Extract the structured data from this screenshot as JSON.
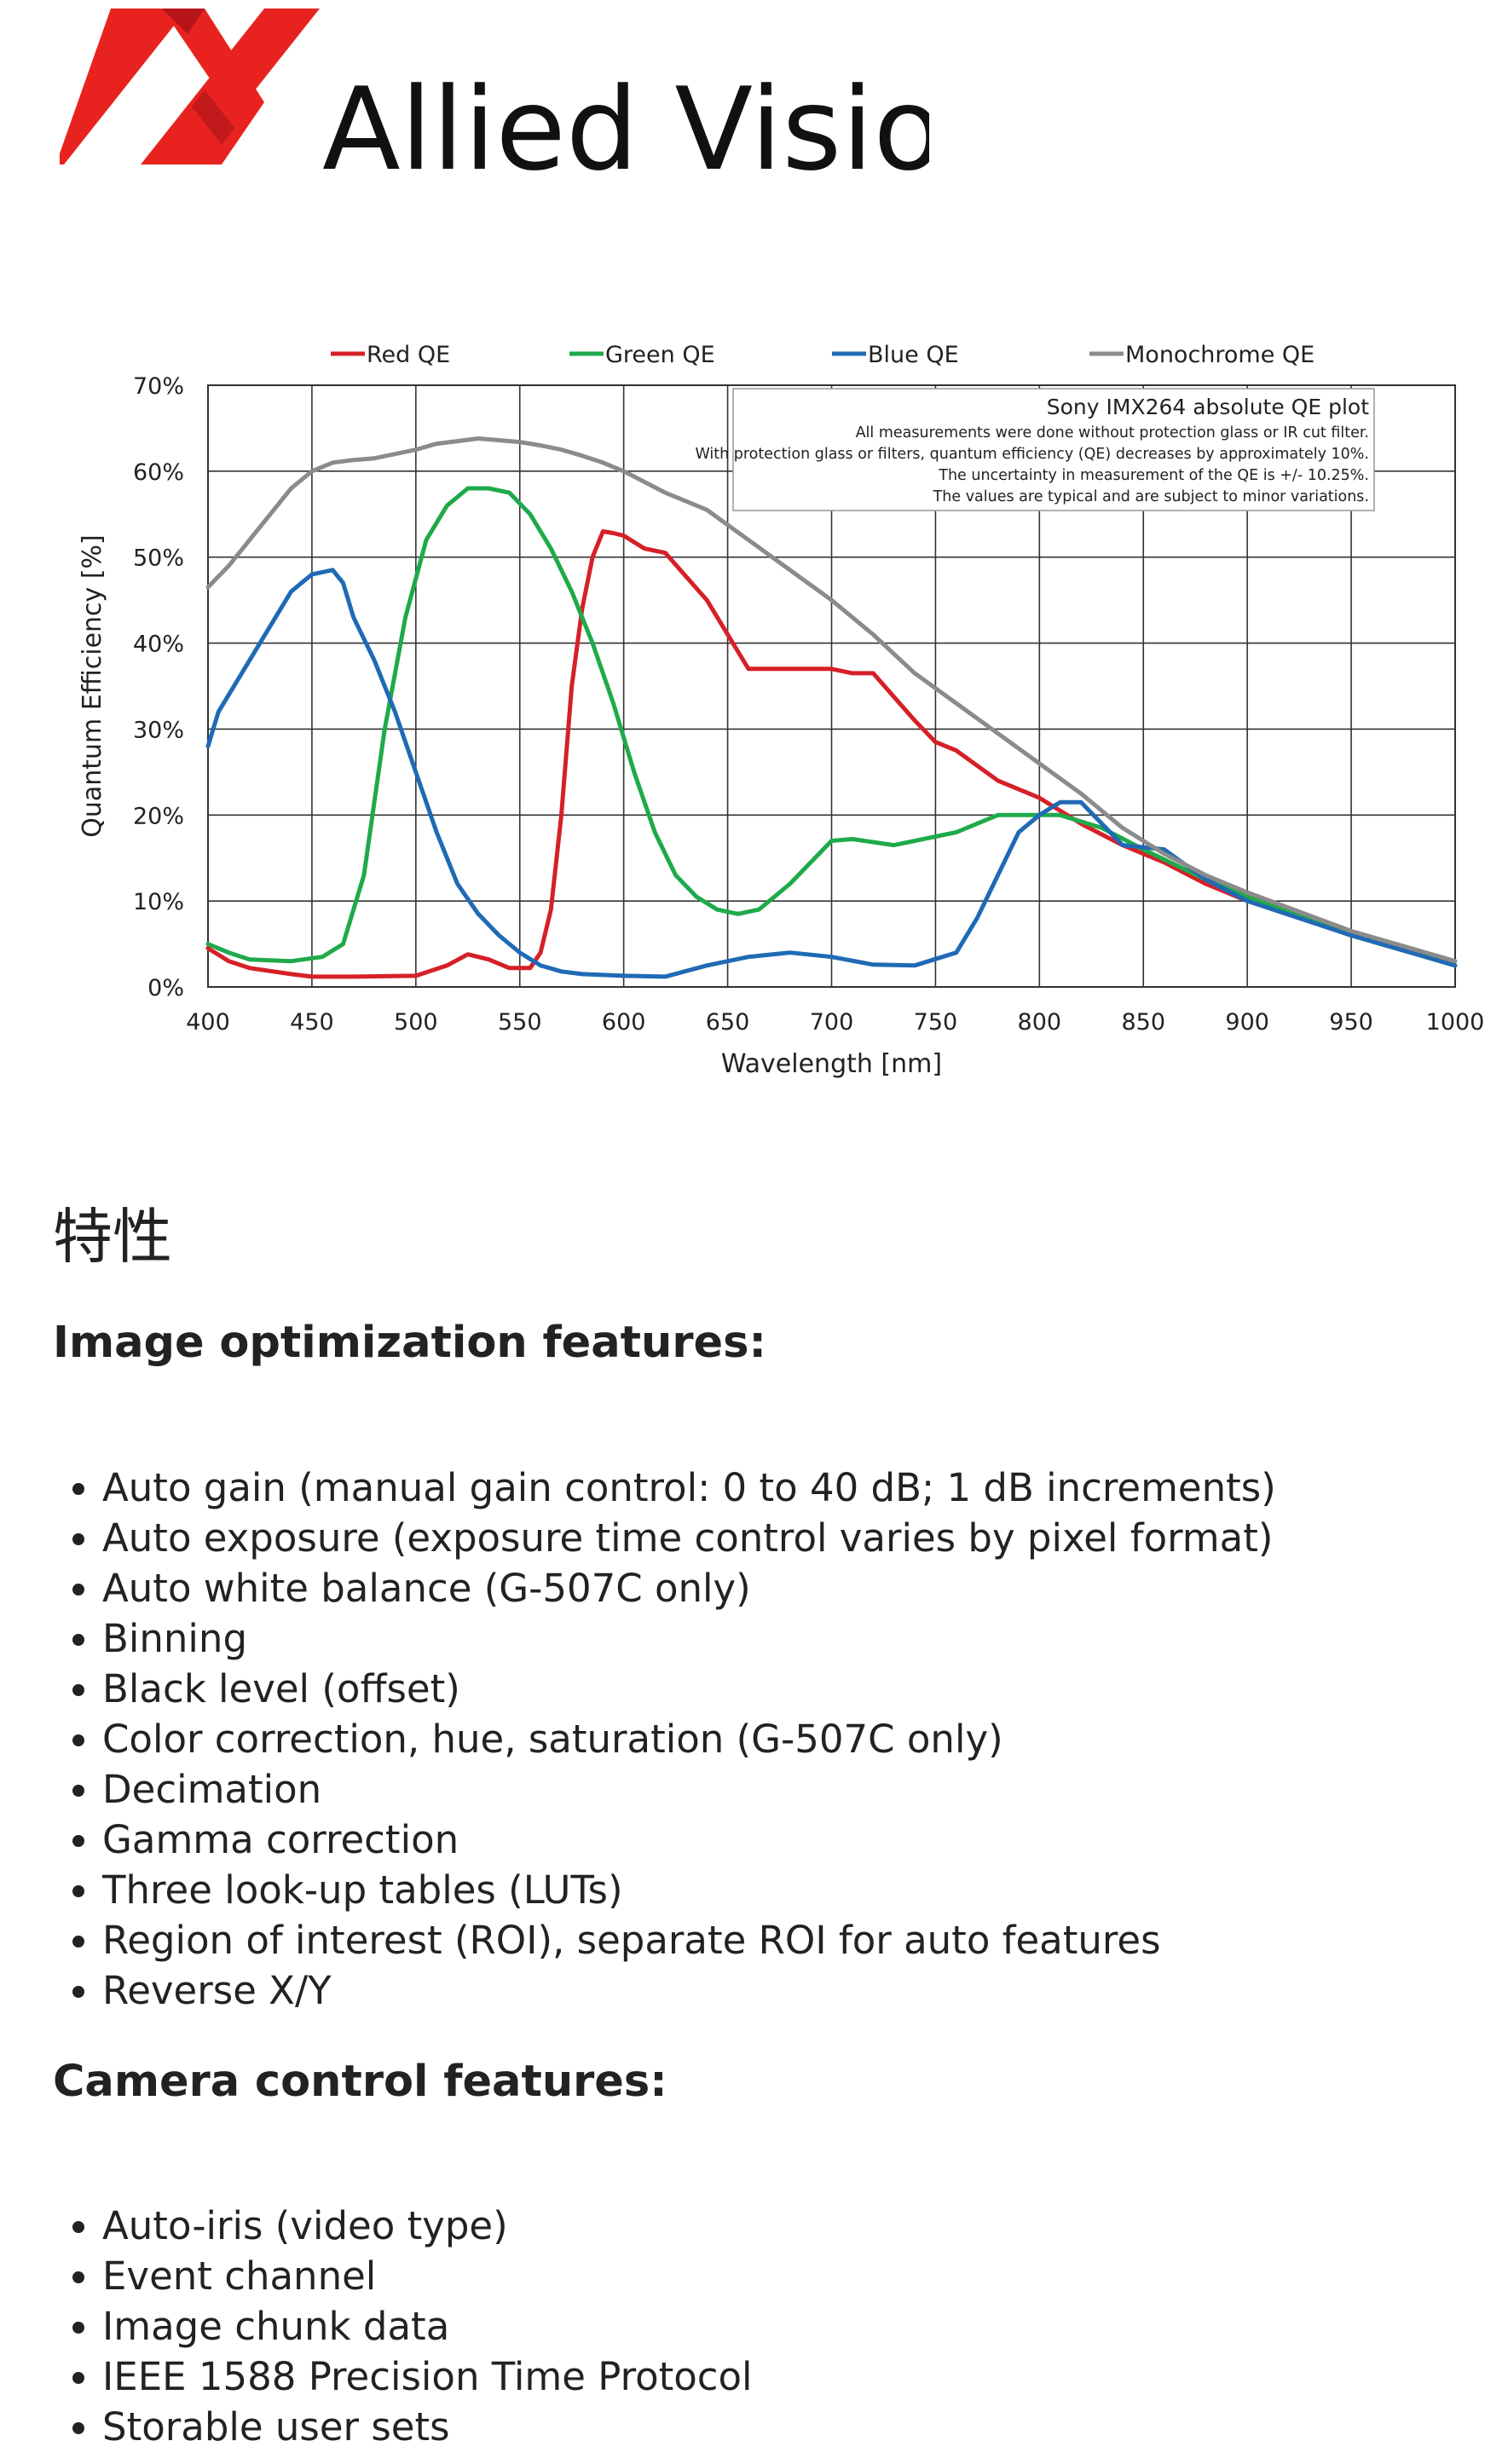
{
  "logo": {
    "brand": "Allied Vision",
    "mark": "allied-vision-logo-mark"
  },
  "chart_data": {
    "type": "line",
    "note_title": "Sony IMX264 absolute QE plot",
    "notes": [
      "All measurements were done without protection glass or IR cut filter.",
      "With protection glass or filters, quantum efficiency (QE) decreases by approximately 10%.",
      "The uncertainty in measurement of the QE is +/- 10.25%.",
      "The values are typical and are subject to minor variations."
    ],
    "xlabel": "Wavelength [nm]",
    "ylabel": "Quantum Efficiency [%]",
    "xlim": [
      400,
      1000
    ],
    "ylim": [
      0,
      70
    ],
    "xticks": [
      400,
      450,
      500,
      550,
      600,
      650,
      700,
      750,
      800,
      850,
      900,
      950,
      1000
    ],
    "yticks": [
      "0%",
      "10%",
      "20%",
      "30%",
      "40%",
      "50%",
      "60%",
      "70%"
    ],
    "grid": true,
    "legend_position": "top",
    "series": [
      {
        "name": "Red QE",
        "color": "#d62027",
        "x": [
          400,
          410,
          420,
          440,
          450,
          470,
          500,
          515,
          525,
          535,
          545,
          555,
          560,
          565,
          570,
          575,
          580,
          585,
          590,
          595,
          600,
          610,
          620,
          640,
          660,
          680,
          700,
          710,
          720,
          740,
          750,
          760,
          780,
          800,
          820,
          840,
          860,
          880,
          900,
          920,
          950,
          980,
          1000
        ],
        "y": [
          4.5,
          3,
          2.2,
          1.5,
          1.2,
          1.2,
          1.3,
          2.5,
          3.8,
          3.2,
          2.2,
          2.2,
          4,
          9,
          20,
          35,
          44,
          50,
          53,
          52.8,
          52.5,
          51,
          50.5,
          45,
          37,
          37,
          37,
          36.5,
          36.5,
          31,
          28.5,
          27.5,
          24,
          22,
          19,
          16.5,
          14.5,
          12,
          10,
          8.5,
          6,
          4,
          2.5
        ]
      },
      {
        "name": "Green QE",
        "color": "#1faa4a",
        "x": [
          400,
          410,
          420,
          440,
          455,
          465,
          475,
          485,
          495,
          505,
          515,
          525,
          535,
          545,
          555,
          565,
          575,
          585,
          595,
          605,
          615,
          625,
          635,
          645,
          655,
          665,
          680,
          700,
          710,
          730,
          760,
          780,
          810,
          830,
          850,
          880,
          900,
          950,
          1000
        ],
        "y": [
          5,
          4,
          3.2,
          3,
          3.5,
          5,
          13,
          30,
          43,
          52,
          56,
          58,
          58,
          57.5,
          55,
          51,
          46,
          40,
          33,
          25,
          18,
          13,
          10.5,
          9,
          8.5,
          9,
          12,
          17,
          17.2,
          16.5,
          18,
          20,
          20,
          18.5,
          16,
          12.5,
          10.5,
          6,
          2.5
        ]
      },
      {
        "name": "Blue QE",
        "color": "#1f6ab5",
        "x": [
          400,
          405,
          410,
          420,
          430,
          440,
          450,
          460,
          465,
          470,
          480,
          490,
          500,
          510,
          520,
          530,
          540,
          550,
          560,
          570,
          580,
          600,
          620,
          640,
          660,
          680,
          700,
          720,
          740,
          760,
          770,
          780,
          790,
          800,
          810,
          820,
          830,
          840,
          860,
          880,
          900,
          950,
          1000
        ],
        "y": [
          28,
          32,
          34,
          38,
          42,
          46,
          48,
          48.5,
          47,
          43,
          38,
          32,
          25,
          18,
          12,
          8.5,
          6,
          4,
          2.5,
          1.8,
          1.5,
          1.3,
          1.2,
          2.5,
          3.5,
          4,
          3.5,
          2.6,
          2.5,
          4,
          8,
          13,
          18,
          20,
          21.5,
          21.5,
          19,
          16.5,
          16,
          12.5,
          10,
          6,
          2.5
        ]
      },
      {
        "name": "Monochrome QE",
        "color": "#8b8b8b",
        "x": [
          400,
          410,
          420,
          430,
          440,
          450,
          460,
          470,
          480,
          490,
          500,
          510,
          520,
          530,
          540,
          550,
          560,
          570,
          580,
          590,
          600,
          620,
          640,
          660,
          680,
          700,
          720,
          740,
          760,
          780,
          800,
          820,
          840,
          860,
          880,
          900,
          950,
          1000
        ],
        "y": [
          46.5,
          49,
          52,
          55,
          58,
          60,
          61,
          61.3,
          61.5,
          62,
          62.5,
          63.2,
          63.5,
          63.8,
          63.6,
          63.4,
          63,
          62.5,
          61.8,
          61,
          60,
          57.5,
          55.5,
          52,
          48.5,
          45,
          41,
          36.5,
          33,
          29.5,
          26,
          22.5,
          18.5,
          15.5,
          13,
          11,
          6.5,
          3
        ]
      }
    ]
  },
  "features": {
    "heading": "特性",
    "image_optimization_title": "Image optimization features:",
    "image_optimization": [
      "Auto gain (manual gain control: 0 to 40 dB; 1 dB increments)",
      "Auto exposure (exposure time control varies by pixel format)",
      "Auto white balance (G-507C only)",
      "Binning",
      "Black level (offset)",
      "Color correction, hue, saturation (G-507C only)",
      "Decimation",
      "Gamma correction",
      "Three look-up tables (LUTs)",
      "Region of interest (ROI), separate ROI for auto features",
      "Reverse X/Y"
    ],
    "camera_control_title": "Camera control features:",
    "camera_control": [
      "Auto-iris (video type)",
      "Event channel",
      "Image chunk data",
      "IEEE 1588 Precision Time Protocol",
      "Storable user sets"
    ]
  }
}
